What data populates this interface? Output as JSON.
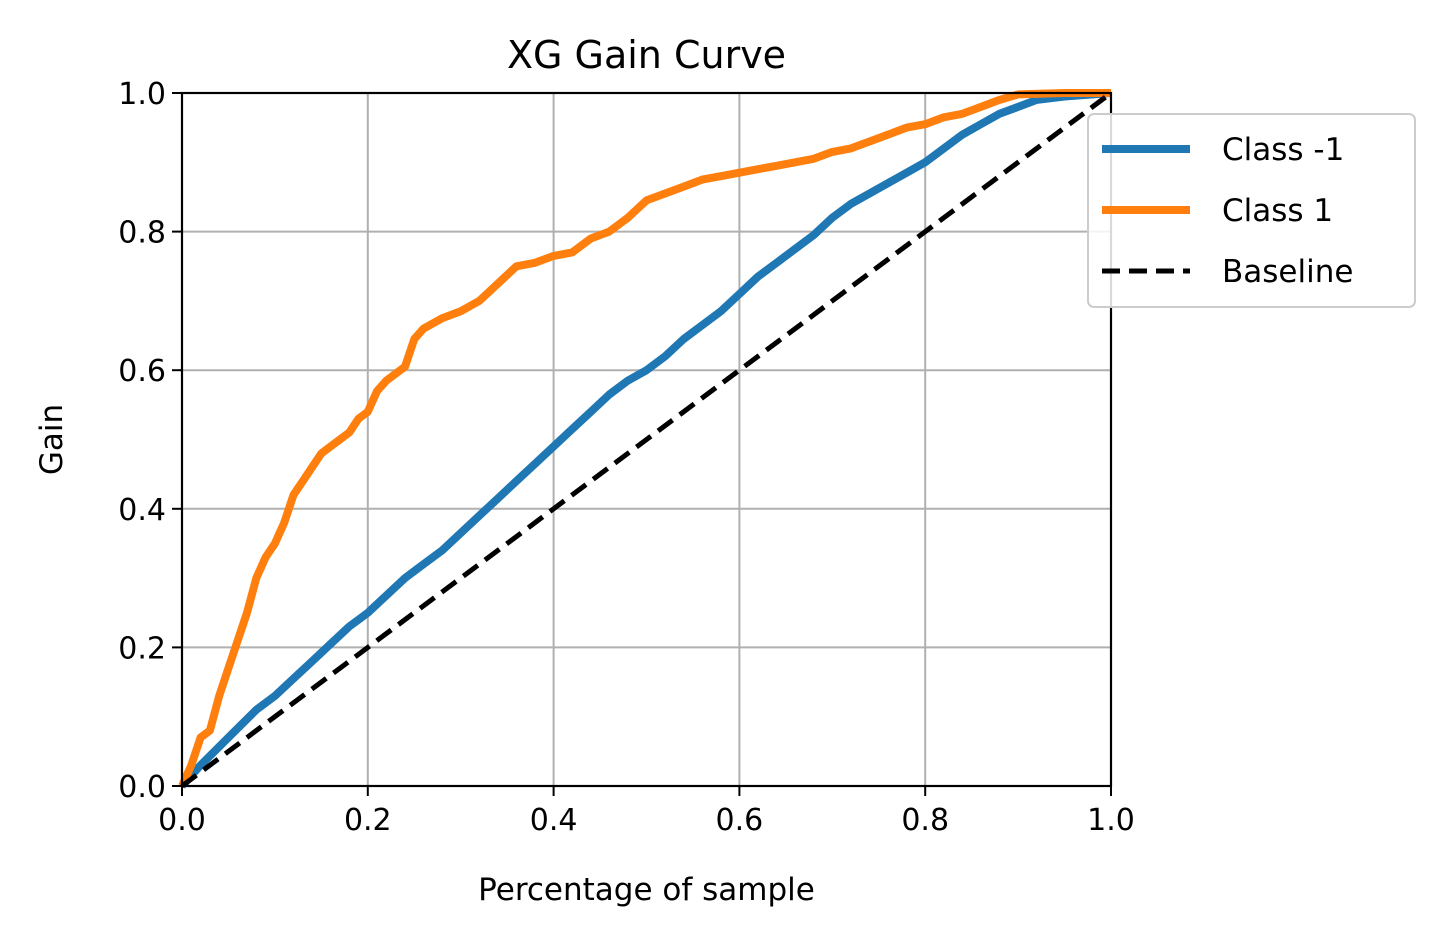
{
  "chart_data": {
    "type": "line",
    "title": "XG Gain Curve",
    "xlabel": "Percentage of sample",
    "ylabel": "Gain",
    "xlim": [
      0,
      1
    ],
    "ylim": [
      0,
      1
    ],
    "xticks": [
      "0.0",
      "0.2",
      "0.4",
      "0.6",
      "0.8",
      "1.0"
    ],
    "yticks": [
      "0.0",
      "0.2",
      "0.4",
      "0.6",
      "0.8",
      "1.0"
    ],
    "grid": true,
    "legend_position": "upper-right-outside",
    "series": [
      {
        "name": "Class -1",
        "color": "#1f77b4",
        "style": "solid",
        "points": [
          [
            0,
            0
          ],
          [
            0.02,
            0.03
          ],
          [
            0.05,
            0.07
          ],
          [
            0.08,
            0.11
          ],
          [
            0.1,
            0.13
          ],
          [
            0.12,
            0.155
          ],
          [
            0.14,
            0.18
          ],
          [
            0.16,
            0.205
          ],
          [
            0.18,
            0.23
          ],
          [
            0.2,
            0.25
          ],
          [
            0.22,
            0.275
          ],
          [
            0.24,
            0.3
          ],
          [
            0.26,
            0.32
          ],
          [
            0.28,
            0.34
          ],
          [
            0.3,
            0.365
          ],
          [
            0.32,
            0.39
          ],
          [
            0.34,
            0.415
          ],
          [
            0.36,
            0.44
          ],
          [
            0.38,
            0.465
          ],
          [
            0.4,
            0.49
          ],
          [
            0.42,
            0.515
          ],
          [
            0.44,
            0.54
          ],
          [
            0.46,
            0.565
          ],
          [
            0.48,
            0.585
          ],
          [
            0.5,
            0.6
          ],
          [
            0.52,
            0.62
          ],
          [
            0.54,
            0.645
          ],
          [
            0.56,
            0.665
          ],
          [
            0.58,
            0.685
          ],
          [
            0.6,
            0.71
          ],
          [
            0.62,
            0.735
          ],
          [
            0.64,
            0.755
          ],
          [
            0.66,
            0.775
          ],
          [
            0.68,
            0.795
          ],
          [
            0.7,
            0.82
          ],
          [
            0.72,
            0.84
          ],
          [
            0.74,
            0.855
          ],
          [
            0.76,
            0.87
          ],
          [
            0.78,
            0.885
          ],
          [
            0.8,
            0.9
          ],
          [
            0.82,
            0.92
          ],
          [
            0.84,
            0.94
          ],
          [
            0.86,
            0.955
          ],
          [
            0.88,
            0.97
          ],
          [
            0.9,
            0.98
          ],
          [
            0.92,
            0.99
          ],
          [
            0.95,
            0.995
          ],
          [
            1,
            1
          ]
        ]
      },
      {
        "name": "Class 1",
        "color": "#ff7f0e",
        "style": "solid",
        "points": [
          [
            0,
            0
          ],
          [
            0.01,
            0.03
          ],
          [
            0.02,
            0.07
          ],
          [
            0.03,
            0.08
          ],
          [
            0.04,
            0.13
          ],
          [
            0.05,
            0.17
          ],
          [
            0.06,
            0.21
          ],
          [
            0.07,
            0.25
          ],
          [
            0.08,
            0.3
          ],
          [
            0.09,
            0.33
          ],
          [
            0.1,
            0.35
          ],
          [
            0.11,
            0.38
          ],
          [
            0.12,
            0.42
          ],
          [
            0.13,
            0.44
          ],
          [
            0.14,
            0.46
          ],
          [
            0.15,
            0.48
          ],
          [
            0.16,
            0.49
          ],
          [
            0.17,
            0.5
          ],
          [
            0.18,
            0.51
          ],
          [
            0.19,
            0.53
          ],
          [
            0.2,
            0.54
          ],
          [
            0.21,
            0.57
          ],
          [
            0.22,
            0.585
          ],
          [
            0.24,
            0.605
          ],
          [
            0.25,
            0.645
          ],
          [
            0.26,
            0.66
          ],
          [
            0.28,
            0.675
          ],
          [
            0.3,
            0.685
          ],
          [
            0.32,
            0.7
          ],
          [
            0.34,
            0.725
          ],
          [
            0.36,
            0.75
          ],
          [
            0.38,
            0.755
          ],
          [
            0.4,
            0.765
          ],
          [
            0.42,
            0.77
          ],
          [
            0.44,
            0.79
          ],
          [
            0.46,
            0.8
          ],
          [
            0.48,
            0.82
          ],
          [
            0.5,
            0.845
          ],
          [
            0.52,
            0.855
          ],
          [
            0.54,
            0.865
          ],
          [
            0.56,
            0.875
          ],
          [
            0.58,
            0.88
          ],
          [
            0.6,
            0.885
          ],
          [
            0.62,
            0.89
          ],
          [
            0.64,
            0.895
          ],
          [
            0.66,
            0.9
          ],
          [
            0.68,
            0.905
          ],
          [
            0.7,
            0.915
          ],
          [
            0.72,
            0.92
          ],
          [
            0.74,
            0.93
          ],
          [
            0.76,
            0.94
          ],
          [
            0.78,
            0.95
          ],
          [
            0.8,
            0.955
          ],
          [
            0.82,
            0.965
          ],
          [
            0.84,
            0.97
          ],
          [
            0.86,
            0.98
          ],
          [
            0.88,
            0.99
          ],
          [
            0.9,
            0.998
          ],
          [
            0.95,
            1
          ],
          [
            1,
            1
          ]
        ]
      },
      {
        "name": "Baseline",
        "color": "#000000",
        "style": "dashed",
        "points": [
          [
            0,
            0
          ],
          [
            1,
            1
          ]
        ]
      }
    ]
  }
}
